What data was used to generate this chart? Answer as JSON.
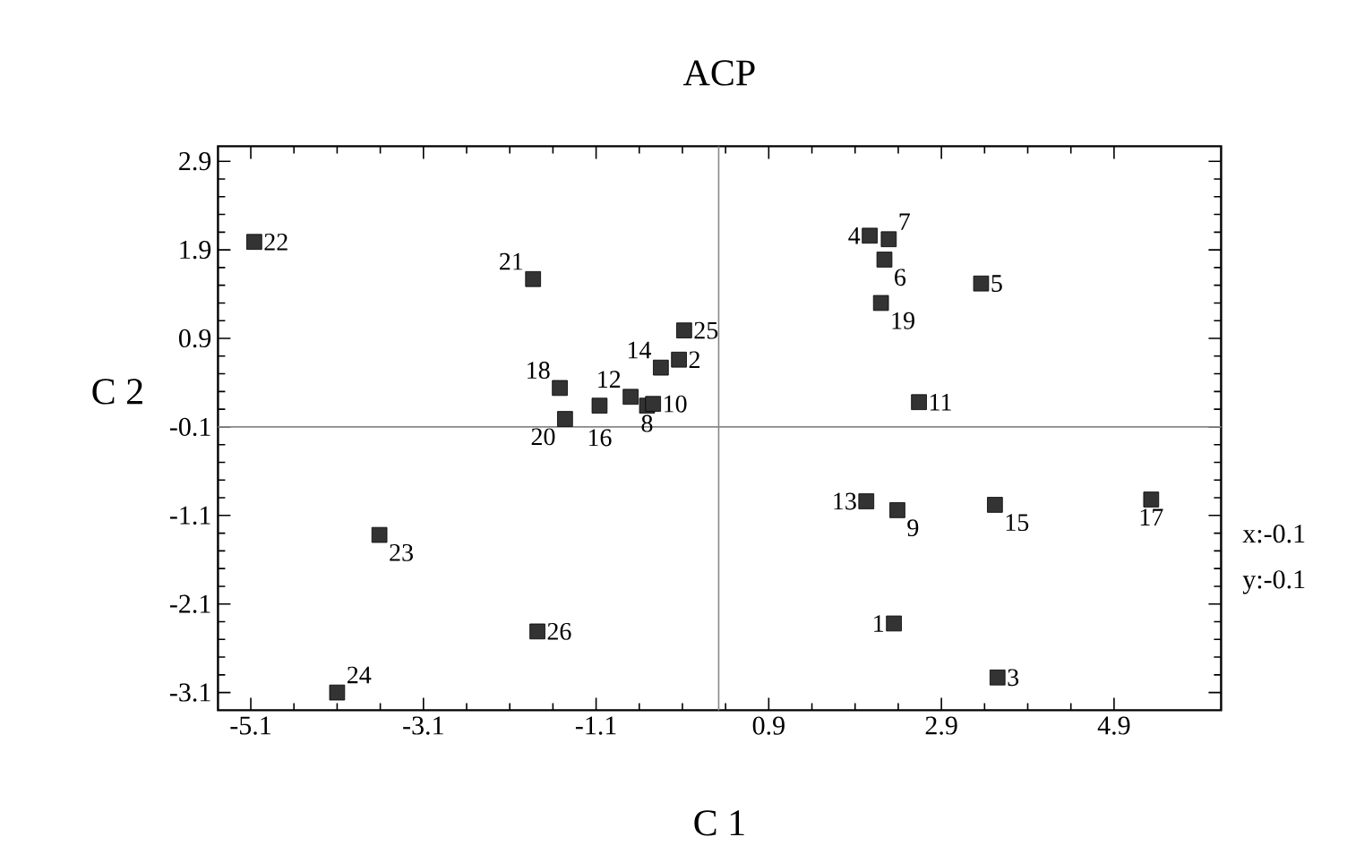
{
  "chart_data": {
    "type": "scatter",
    "title": "ACP",
    "xlabel": "C 1",
    "ylabel": "C 2",
    "x": [
      2.35,
      -0.14,
      3.55,
      2.07,
      3.36,
      2.24,
      2.29,
      -0.51,
      2.39,
      -0.44,
      2.64,
      -0.7,
      2.03,
      -0.35,
      3.52,
      -1.06,
      5.33,
      -1.52,
      2.2,
      -1.46,
      -1.83,
      -5.06,
      -3.61,
      -4.1,
      -0.08,
      -1.78
    ],
    "values": [
      -2.32,
      0.66,
      -2.93,
      2.06,
      1.52,
      1.79,
      2.02,
      0.14,
      -1.04,
      0.16,
      0.18,
      0.24,
      -0.94,
      0.57,
      -0.98,
      0.14,
      -0.92,
      0.34,
      1.3,
      -0.01,
      1.57,
      1.99,
      -1.32,
      -3.1,
      0.99,
      -2.41
    ],
    "color": "#333333",
    "marker": "square",
    "xlim": [
      -5.48,
      6.14
    ],
    "ylim": [
      -3.3,
      3.07
    ],
    "xticks": [
      -5.1,
      -3.1,
      -1.1,
      0.9,
      2.9,
      4.9
    ],
    "yticks": [
      -3.1,
      -2.1,
      -1.1,
      -0.1,
      0.9,
      1.9,
      2.9
    ],
    "ref_lines": [
      {
        "axis": "x",
        "value": 0.32,
        "color": "#888888"
      },
      {
        "axis": "y",
        "value": -0.1,
        "color": "#888888"
      }
    ],
    "annotations": [
      {
        "text": "1",
        "x": 2.35,
        "y": -2.32
      },
      {
        "text": "2",
        "x": -0.14,
        "y": 0.66
      },
      {
        "text": "3",
        "x": 3.55,
        "y": -2.93
      },
      {
        "text": "4",
        "x": 2.07,
        "y": 2.06
      },
      {
        "text": "5",
        "x": 3.36,
        "y": 1.52
      },
      {
        "text": "6",
        "x": 2.24,
        "y": 1.79
      },
      {
        "text": "7",
        "x": 2.29,
        "y": 2.02
      },
      {
        "text": "8",
        "x": -0.51,
        "y": 0.14
      },
      {
        "text": "9",
        "x": 2.39,
        "y": -1.04
      },
      {
        "text": "10",
        "x": -0.44,
        "y": 0.16
      },
      {
        "text": "11",
        "x": 2.64,
        "y": 0.18
      },
      {
        "text": "12",
        "x": -0.7,
        "y": 0.24
      },
      {
        "text": "13",
        "x": 2.03,
        "y": -0.94
      },
      {
        "text": "14",
        "x": -0.35,
        "y": 0.57
      },
      {
        "text": "15",
        "x": 3.52,
        "y": -0.98
      },
      {
        "text": "16",
        "x": -1.06,
        "y": 0.14
      },
      {
        "text": "17",
        "x": 5.33,
        "y": -0.92
      },
      {
        "text": "18",
        "x": -1.52,
        "y": 0.34
      },
      {
        "text": "19",
        "x": 2.2,
        "y": 1.3
      },
      {
        "text": "20",
        "x": -1.46,
        "y": -0.01
      },
      {
        "text": "21",
        "x": -1.83,
        "y": 1.57
      },
      {
        "text": "22",
        "x": -5.06,
        "y": 1.99
      },
      {
        "text": "23",
        "x": -3.61,
        "y": -1.32
      },
      {
        "text": "24",
        "x": -4.1,
        "y": -3.1
      },
      {
        "text": "25",
        "x": -0.08,
        "y": 0.99
      },
      {
        "text": "26",
        "x": -1.78,
        "y": -2.41
      },
      "x:-0.1",
      "y:-0.1"
    ]
  }
}
